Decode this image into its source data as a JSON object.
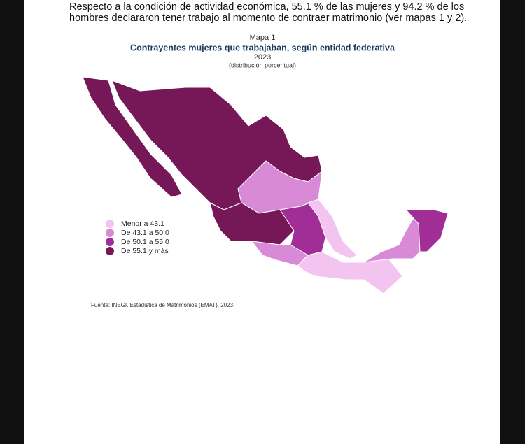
{
  "document": {
    "paragraph_lines": [
      "Respecto a la condición de actividad económica, 55.1 % de las mujeres y 94.2 % de los",
      "hombres declararon tener trabajo al momento de contraer matrimonio (ver mapas 1 y 2)."
    ],
    "map": {
      "label": "Mapa 1",
      "title": "Contrayentes mujeres que trabajaban, según entidad federativa",
      "year": "2023",
      "subtitle": "(distribución porcentual)",
      "legend": [
        {
          "label": "Menor a 43.1",
          "color": "#f2c4ef"
        },
        {
          "label": "De 43.1 a 50.0",
          "color": "#d98ad6"
        },
        {
          "label": "De 50.1 a 55.0",
          "color": "#a12e96"
        },
        {
          "label": "De 55.1 y más",
          "color": "#761858"
        }
      ],
      "source": "Fuente: INEGI. Estadística de Matrimonios (EMAT), 2023."
    }
  }
}
